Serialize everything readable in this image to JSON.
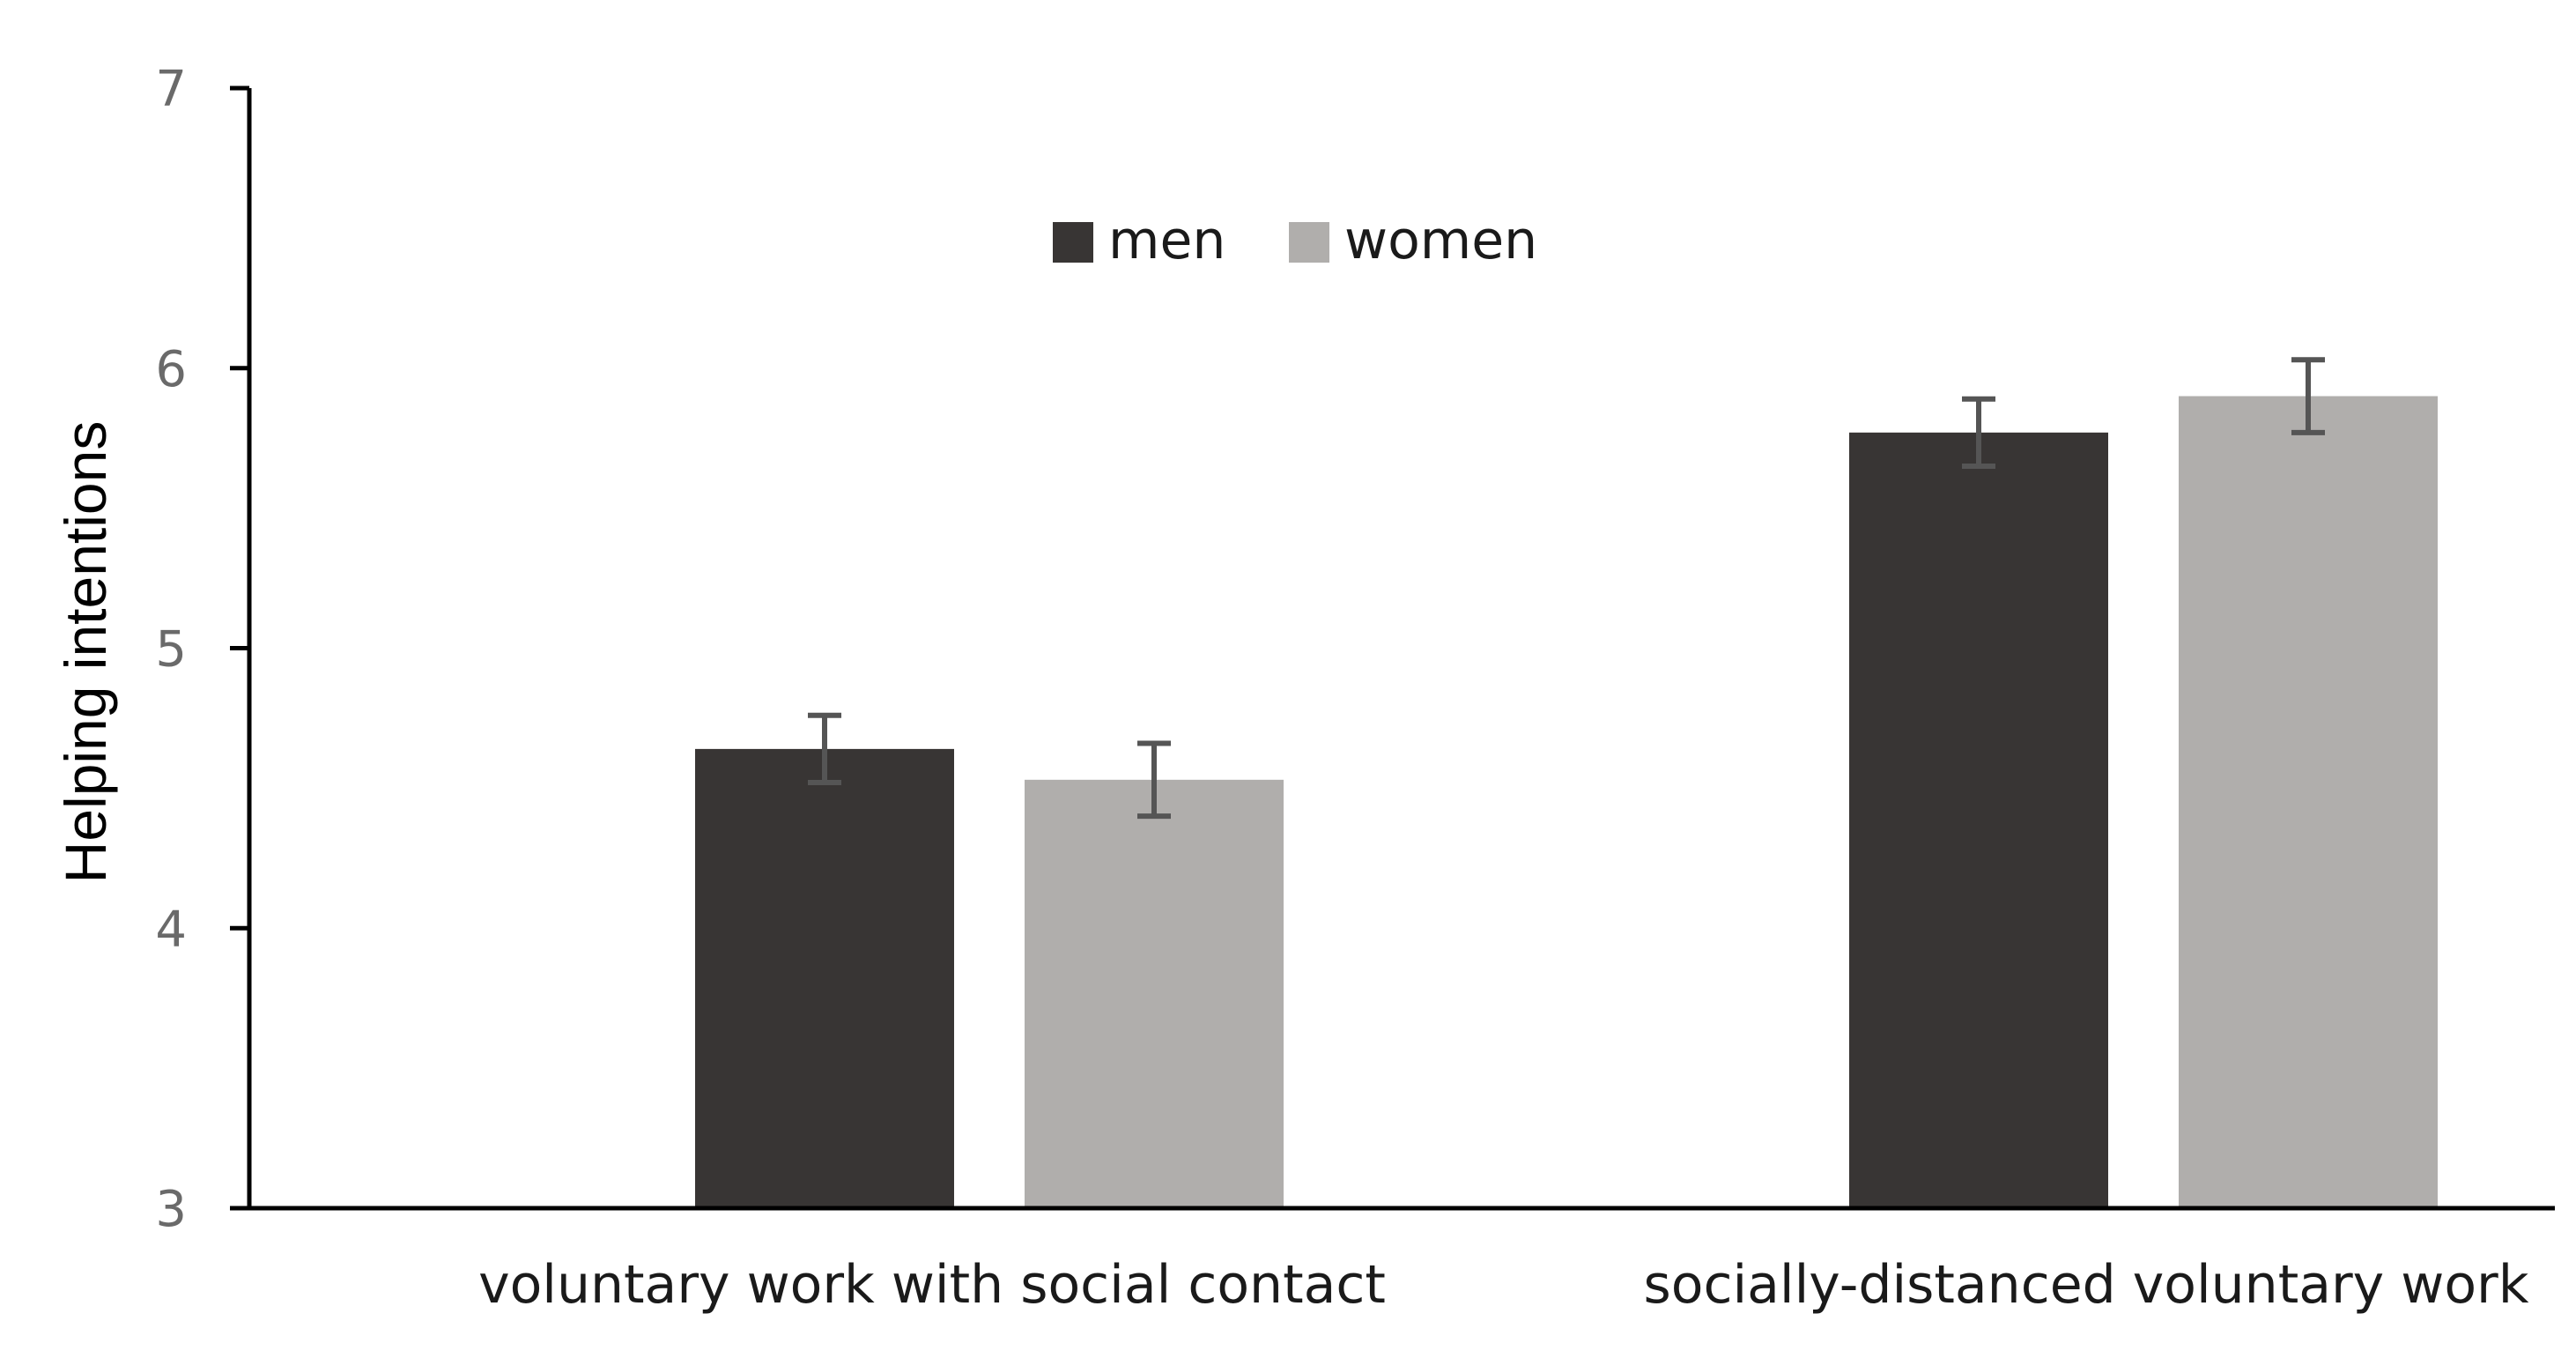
{
  "chart_data": {
    "type": "bar",
    "title": "",
    "xlabel": "",
    "ylabel": "Helping intentions",
    "ylim": [
      3,
      7
    ],
    "yticks": [
      "3",
      "4",
      "5",
      "6",
      "7"
    ],
    "categories": [
      "voluntary work with social contact",
      "socially-distanced voluntary work"
    ],
    "series": [
      {
        "name": "men",
        "color": "#383534",
        "values": [
          4.64,
          5.77
        ],
        "error": [
          0.12,
          0.12
        ]
      },
      {
        "name": "women",
        "color": "#b0aeac",
        "values": [
          4.53,
          5.9
        ],
        "error": [
          0.13,
          0.13
        ]
      }
    ],
    "grid": false,
    "legend_position": "top-center",
    "error_bar_color": "#555555"
  }
}
